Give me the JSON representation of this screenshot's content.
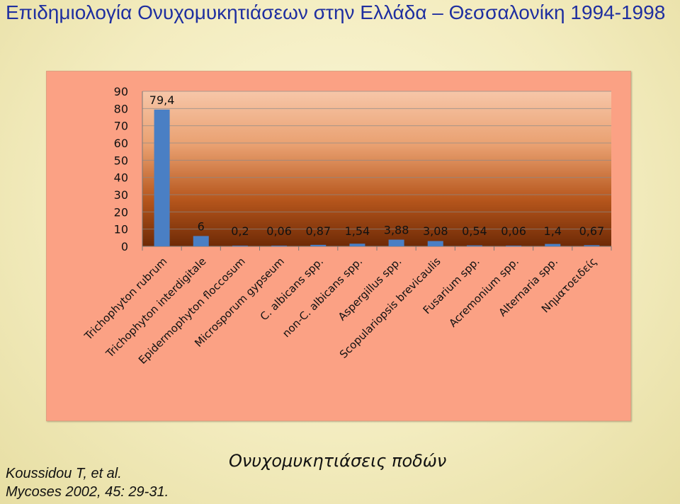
{
  "slide": {
    "title": "Επιδημιολογία Ονυχομυκητιάσεων στην Ελλάδα – Θεσσαλονίκη 1994-1998",
    "caption": "Ονυχομυκητιάσεις ποδών",
    "citation_line1": "Koussidou T, et al.",
    "citation_line2": "Mycoses 2002, 45: 29-31."
  },
  "colors": {
    "title": "#1f2fa0",
    "bar": "#4a7fc4",
    "frame_background": "#fba184",
    "plot_gradient_top": "#f7c6a8",
    "plot_gradient_bottom": "#6e2a06"
  },
  "chart_data": {
    "type": "bar",
    "categories": [
      "Trichophyton rubrum",
      "Trichophyton interdigitale",
      "Epidermophyton floccosum",
      "Microsporum gypseum",
      "C. albicans spp.",
      "non-C. albicans spp.",
      "Aspergillus spp.",
      "Scopulariopsis brevicaulis",
      "Fusarium spp.",
      "Acremonium spp.",
      "Alternaria spp.",
      "Νηματοειδείς"
    ],
    "values": [
      79.4,
      6,
      0.2,
      0.06,
      0.87,
      1.54,
      3.88,
      3.08,
      0.54,
      0.06,
      1.4,
      0.67
    ],
    "data_labels": [
      "79,4",
      "6",
      "0,2",
      "0,06",
      "0,87",
      "1,54",
      "3,88",
      "3,08",
      "0,54",
      "0,06",
      "1,4",
      "0,67"
    ],
    "y_ticks": [
      0,
      10,
      20,
      30,
      40,
      50,
      60,
      70,
      80,
      90
    ],
    "ylim": [
      0,
      90
    ],
    "grid": true,
    "legend": "none"
  }
}
